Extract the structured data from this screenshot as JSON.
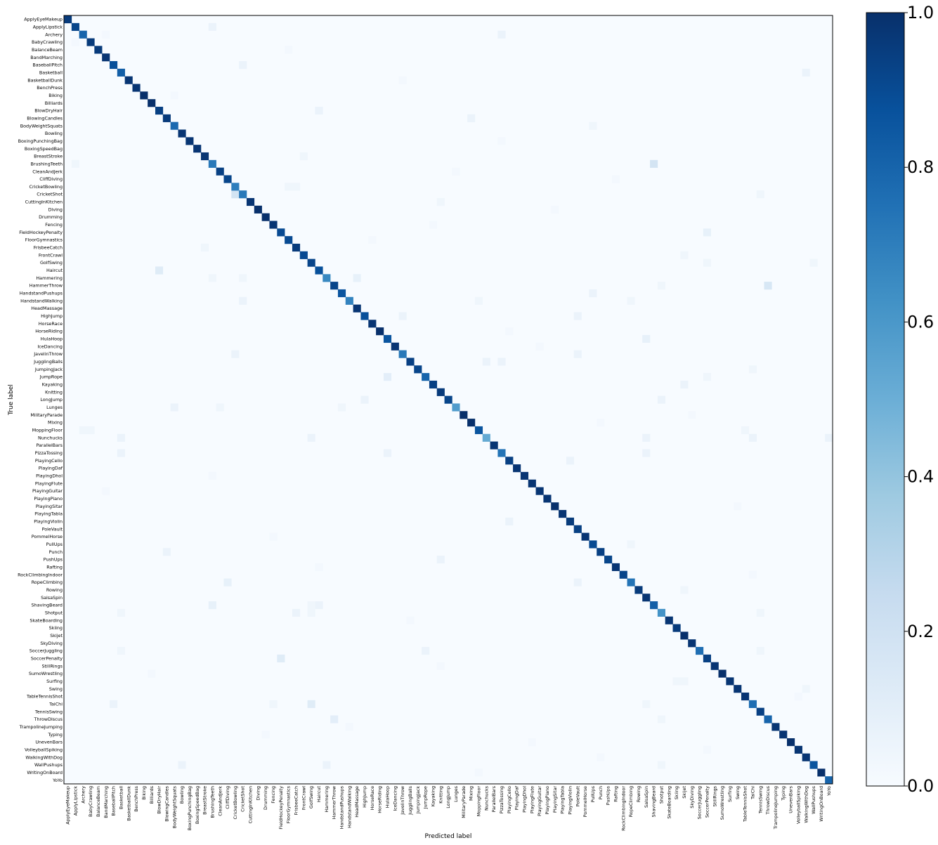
{
  "chart_data": {
    "type": "heatmap",
    "title": "",
    "xlabel": "Predicted label",
    "ylabel": "True label",
    "labels": [
      "ApplyEyeMakeup",
      "ApplyLipstick",
      "Archery",
      "BabyCrawling",
      "BalanceBeam",
      "BandMarching",
      "BaseballPitch",
      "Basketball",
      "BasketballDunk",
      "BenchPress",
      "Biking",
      "Billiards",
      "BlowDryHair",
      "BlowingCandles",
      "BodyWeightSquats",
      "Bowling",
      "BoxingPunchingBag",
      "BoxingSpeedBag",
      "BreastStroke",
      "BrushingTeeth",
      "CleanAndJerk",
      "CliffDiving",
      "CricketBowling",
      "CricketShot",
      "CuttingInKitchen",
      "Diving",
      "Drumming",
      "Fencing",
      "FieldHockeyPenalty",
      "FloorGymnastics",
      "FrisbeeCatch",
      "FrontCrawl",
      "GolfSwing",
      "Haircut",
      "Hammering",
      "HammerThrow",
      "HandstandPushups",
      "HandstandWalking",
      "HeadMassage",
      "HighJump",
      "HorseRace",
      "HorseRiding",
      "HulaHoop",
      "IceDancing",
      "JavelinThrow",
      "JugglingBalls",
      "JumpingJack",
      "JumpRope",
      "Kayaking",
      "Knitting",
      "LongJump",
      "Lunges",
      "MilitaryParade",
      "Mixing",
      "MoppingFloor",
      "Nunchucks",
      "ParallelBars",
      "PizzaTossing",
      "PlayingCello",
      "PlayingDaf",
      "PlayingDhol",
      "PlayingFlute",
      "PlayingGuitar",
      "PlayingPiano",
      "PlayingSitar",
      "PlayingTabla",
      "PlayingViolin",
      "PoleVault",
      "PommelHorse",
      "PullUps",
      "Punch",
      "PushUps",
      "Rafting",
      "RockClimbingIndoor",
      "RopeClimbing",
      "Rowing",
      "SalsaSpin",
      "ShavingBeard",
      "Shotput",
      "SkateBoarding",
      "Skiing",
      "Skijet",
      "SkyDiving",
      "SoccerJuggling",
      "SoccerPenalty",
      "StillRings",
      "SumoWrestling",
      "Surfing",
      "Swing",
      "TableTennisShot",
      "TaiChi",
      "TennisSwing",
      "ThrowDiscus",
      "TrampolineJumping",
      "Typing",
      "UnevenBars",
      "VolleyballSpiking",
      "WalkingWithDog",
      "WallPushups",
      "WritingOnBoard",
      "YoYo"
    ],
    "diagonal": [
      0.96,
      0.92,
      0.8,
      0.96,
      0.96,
      0.98,
      0.88,
      0.82,
      0.98,
      0.98,
      1.0,
      1.0,
      0.94,
      0.96,
      0.78,
      0.98,
      0.98,
      0.98,
      0.98,
      0.72,
      0.94,
      0.92,
      0.7,
      0.72,
      0.98,
      1.0,
      1.0,
      0.98,
      0.9,
      0.9,
      0.96,
      0.9,
      0.92,
      0.88,
      0.66,
      0.92,
      0.86,
      0.68,
      0.98,
      0.88,
      0.98,
      1.0,
      0.86,
      0.98,
      0.72,
      0.94,
      0.92,
      0.8,
      0.94,
      0.96,
      0.92,
      0.58,
      1.0,
      1.0,
      0.86,
      0.52,
      0.98,
      0.74,
      0.94,
      0.98,
      0.98,
      0.98,
      0.98,
      0.98,
      1.0,
      0.98,
      0.96,
      0.94,
      0.98,
      0.9,
      0.94,
      0.92,
      0.98,
      0.92,
      0.74,
      0.96,
      0.98,
      0.82,
      0.62,
      0.98,
      0.96,
      1.0,
      0.98,
      0.76,
      0.94,
      0.98,
      1.0,
      0.98,
      0.98,
      0.98,
      0.76,
      0.94,
      0.8,
      0.98,
      0.98,
      1.0,
      0.98,
      0.98,
      0.86,
      1.0,
      0.8
    ],
    "off_diagonal": [
      [
        1,
        19,
        0.06
      ],
      [
        2,
        57,
        0.06
      ],
      [
        3,
        1,
        0.02
      ],
      [
        6,
        23,
        0.06
      ],
      [
        7,
        97,
        0.06
      ],
      [
        12,
        33,
        0.06
      ],
      [
        13,
        53,
        0.06
      ],
      [
        14,
        69,
        0.04
      ],
      [
        18,
        31,
        0.04
      ],
      [
        19,
        1,
        0.04
      ],
      [
        19,
        77,
        0.18
      ],
      [
        20,
        51,
        0.02
      ],
      [
        22,
        29,
        0.04
      ],
      [
        22,
        30,
        0.04
      ],
      [
        23,
        22,
        0.18
      ],
      [
        23,
        91,
        0.04
      ],
      [
        24,
        49,
        0.04
      ],
      [
        28,
        84,
        0.08
      ],
      [
        29,
        40,
        0.02
      ],
      [
        30,
        18,
        0.04
      ],
      [
        31,
        81,
        0.04
      ],
      [
        32,
        84,
        0.04
      ],
      [
        32,
        98,
        0.04
      ],
      [
        33,
        12,
        0.12
      ],
      [
        34,
        19,
        0.04
      ],
      [
        34,
        38,
        0.08
      ],
      [
        34,
        23,
        0.04
      ],
      [
        35,
        92,
        0.16
      ],
      [
        35,
        78,
        0.04
      ],
      [
        36,
        69,
        0.06
      ],
      [
        37,
        23,
        0.06
      ],
      [
        37,
        54,
        0.04
      ],
      [
        37,
        74,
        0.04
      ],
      [
        39,
        44,
        0.06
      ],
      [
        39,
        67,
        0.06
      ],
      [
        42,
        76,
        0.08
      ],
      [
        44,
        22,
        0.06
      ],
      [
        44,
        67,
        0.06
      ],
      [
        45,
        55,
        0.06
      ],
      [
        45,
        57,
        0.06
      ],
      [
        46,
        90,
        0.04
      ],
      [
        47,
        42,
        0.1
      ],
      [
        47,
        84,
        0.04
      ],
      [
        48,
        81,
        0.06
      ],
      [
        50,
        39,
        0.06
      ],
      [
        50,
        78,
        0.06
      ],
      [
        51,
        14,
        0.06
      ],
      [
        51,
        20,
        0.04
      ],
      [
        51,
        36,
        0.04
      ],
      [
        54,
        2,
        0.04
      ],
      [
        54,
        3,
        0.04
      ],
      [
        54,
        89,
        0.04
      ],
      [
        55,
        7,
        0.06
      ],
      [
        55,
        32,
        0.06
      ],
      [
        55,
        76,
        0.06
      ],
      [
        55,
        90,
        0.06
      ],
      [
        55,
        100,
        0.06
      ],
      [
        57,
        7,
        0.06
      ],
      [
        57,
        42,
        0.06
      ],
      [
        57,
        76,
        0.06
      ],
      [
        58,
        66,
        0.06
      ],
      [
        66,
        58,
        0.06
      ],
      [
        69,
        74,
        0.04
      ],
      [
        70,
        13,
        0.06
      ],
      [
        71,
        49,
        0.06
      ],
      [
        74,
        21,
        0.08
      ],
      [
        74,
        67,
        0.06
      ],
      [
        75,
        81,
        0.04
      ],
      [
        77,
        19,
        0.08
      ],
      [
        77,
        33,
        0.06
      ],
      [
        77,
        32,
        0.04
      ],
      [
        78,
        7,
        0.04
      ],
      [
        78,
        30,
        0.06
      ],
      [
        78,
        32,
        0.04
      ],
      [
        78,
        91,
        0.04
      ],
      [
        83,
        7,
        0.04
      ],
      [
        83,
        47,
        0.06
      ],
      [
        83,
        91,
        0.04
      ],
      [
        84,
        28,
        0.12
      ],
      [
        87,
        80,
        0.04
      ],
      [
        87,
        81,
        0.04
      ],
      [
        88,
        97,
        0.04
      ],
      [
        90,
        6,
        0.06
      ],
      [
        90,
        27,
        0.04
      ],
      [
        90,
        32,
        0.12
      ],
      [
        90,
        76,
        0.04
      ],
      [
        92,
        35,
        0.1
      ],
      [
        92,
        78,
        0.04
      ],
      [
        98,
        15,
        0.06
      ],
      [
        98,
        34,
        0.06
      ],
      [
        98,
        78,
        0.04
      ],
      [
        2,
        5,
        0.02
      ],
      [
        4,
        29,
        0.02
      ],
      [
        8,
        44,
        0.02
      ],
      [
        10,
        14,
        0.02
      ],
      [
        16,
        57,
        0.02
      ],
      [
        21,
        72,
        0.02
      ],
      [
        25,
        64,
        0.02
      ],
      [
        27,
        48,
        0.02
      ],
      [
        41,
        58,
        0.02
      ],
      [
        43,
        62,
        0.02
      ],
      [
        52,
        82,
        0.02
      ],
      [
        53,
        70,
        0.02
      ],
      [
        60,
        19,
        0.02
      ],
      [
        62,
        5,
        0.02
      ],
      [
        64,
        88,
        0.02
      ],
      [
        68,
        27,
        0.02
      ],
      [
        72,
        33,
        0.02
      ],
      [
        73,
        90,
        0.02
      ],
      [
        79,
        45,
        0.02
      ],
      [
        85,
        49,
        0.02
      ],
      [
        86,
        11,
        0.02
      ],
      [
        89,
        96,
        0.02
      ],
      [
        93,
        37,
        0.02
      ],
      [
        94,
        26,
        0.02
      ],
      [
        95,
        61,
        0.02
      ],
      [
        96,
        84,
        0.02
      ],
      [
        97,
        70,
        0.02
      ],
      [
        99,
        54,
        0.02
      ]
    ],
    "colormap": "Blues",
    "color_range": [
      0.0,
      1.0
    ],
    "colorbar_ticks": [
      "0.0",
      "0.2",
      "0.4",
      "0.6",
      "0.8",
      "1.0"
    ],
    "grid": false,
    "legend": "colorbar right"
  }
}
